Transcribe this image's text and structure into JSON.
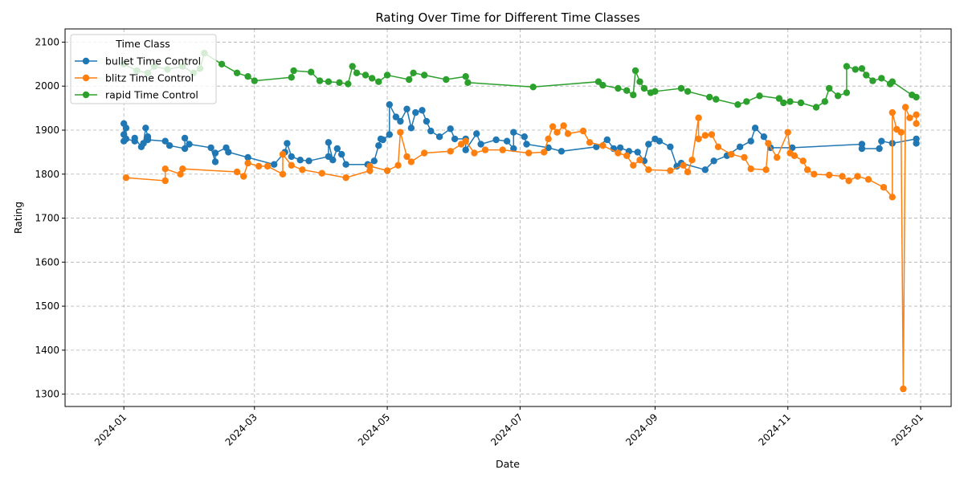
{
  "chart_data": {
    "type": "line",
    "title": "Rating Over Time for Different Time Classes",
    "xlabel": "Date",
    "ylabel": "Rating",
    "x_type": "date",
    "xlim": [
      "2023-12-05",
      "2025-01-15"
    ],
    "ylim": [
      1272,
      2130
    ],
    "x_ticks": [
      "2024-01-01",
      "2024-03-01",
      "2024-05-01",
      "2024-07-01",
      "2024-09-01",
      "2024-11-01",
      "2025-01-01"
    ],
    "x_tick_labels": [
      "2024-01",
      "2024-03",
      "2024-05",
      "2024-07",
      "2024-09",
      "2024-11",
      "2025-01"
    ],
    "y_ticks": [
      1300,
      1400,
      1500,
      1600,
      1700,
      1800,
      1900,
      2000,
      2100
    ],
    "grid": true,
    "legend": {
      "title": "Time Class",
      "placement": "top-left"
    },
    "series": [
      {
        "name": "bullet Time Control",
        "color": "#1f77b4",
        "points": [
          [
            "2024-01-01",
            1875
          ],
          [
            "2024-01-01",
            1915
          ],
          [
            "2024-01-01",
            1890
          ],
          [
            "2024-01-02",
            1905
          ],
          [
            "2024-01-02",
            1880
          ],
          [
            "2024-01-06",
            1875
          ],
          [
            "2024-01-06",
            1882
          ],
          [
            "2024-01-09",
            1862
          ],
          [
            "2024-01-10",
            1870
          ],
          [
            "2024-01-11",
            1905
          ],
          [
            "2024-01-12",
            1885
          ],
          [
            "2024-01-12",
            1878
          ],
          [
            "2024-01-20",
            1875
          ],
          [
            "2024-01-22",
            1865
          ],
          [
            "2024-01-29",
            1858
          ],
          [
            "2024-01-29",
            1882
          ],
          [
            "2024-01-31",
            1868
          ],
          [
            "2024-02-10",
            1860
          ],
          [
            "2024-02-12",
            1828
          ],
          [
            "2024-02-12",
            1848
          ],
          [
            "2024-02-17",
            1860
          ],
          [
            "2024-02-18",
            1850
          ],
          [
            "2024-02-27",
            1838
          ],
          [
            "2024-03-10",
            1822
          ],
          [
            "2024-03-15",
            1850
          ],
          [
            "2024-03-16",
            1870
          ],
          [
            "2024-03-18",
            1840
          ],
          [
            "2024-03-22",
            1832
          ],
          [
            "2024-03-26",
            1830
          ],
          [
            "2024-04-04",
            1840
          ],
          [
            "2024-04-04",
            1872
          ],
          [
            "2024-04-06",
            1832
          ],
          [
            "2024-04-08",
            1858
          ],
          [
            "2024-04-10",
            1845
          ],
          [
            "2024-04-12",
            1822
          ],
          [
            "2024-04-22",
            1822
          ],
          [
            "2024-04-25",
            1830
          ],
          [
            "2024-04-27",
            1865
          ],
          [
            "2024-04-28",
            1880
          ],
          [
            "2024-04-29",
            1878
          ],
          [
            "2024-05-02",
            1890
          ],
          [
            "2024-05-02",
            1958
          ],
          [
            "2024-05-05",
            1930
          ],
          [
            "2024-05-07",
            1920
          ],
          [
            "2024-05-10",
            1948
          ],
          [
            "2024-05-12",
            1905
          ],
          [
            "2024-05-14",
            1940
          ],
          [
            "2024-05-17",
            1945
          ],
          [
            "2024-05-19",
            1920
          ],
          [
            "2024-05-21",
            1898
          ],
          [
            "2024-05-25",
            1885
          ],
          [
            "2024-05-30",
            1903
          ],
          [
            "2024-06-01",
            1880
          ],
          [
            "2024-06-06",
            1880
          ],
          [
            "2024-06-06",
            1855
          ],
          [
            "2024-06-11",
            1892
          ],
          [
            "2024-06-13",
            1868
          ],
          [
            "2024-06-20",
            1878
          ],
          [
            "2024-06-25",
            1875
          ],
          [
            "2024-06-28",
            1858
          ],
          [
            "2024-06-28",
            1895
          ],
          [
            "2024-07-03",
            1885
          ],
          [
            "2024-07-04",
            1868
          ],
          [
            "2024-07-14",
            1860
          ],
          [
            "2024-07-20",
            1852
          ],
          [
            "2024-08-05",
            1862
          ],
          [
            "2024-08-10",
            1878
          ],
          [
            "2024-08-13",
            1858
          ],
          [
            "2024-08-16",
            1860
          ],
          [
            "2024-08-20",
            1852
          ],
          [
            "2024-08-24",
            1850
          ],
          [
            "2024-08-27",
            1830
          ],
          [
            "2024-08-29",
            1868
          ],
          [
            "2024-09-01",
            1880
          ],
          [
            "2024-09-03",
            1875
          ],
          [
            "2024-09-08",
            1862
          ],
          [
            "2024-09-11",
            1818
          ],
          [
            "2024-09-13",
            1825
          ],
          [
            "2024-09-24",
            1810
          ],
          [
            "2024-09-28",
            1830
          ],
          [
            "2024-10-04",
            1842
          ],
          [
            "2024-10-10",
            1862
          ],
          [
            "2024-10-15",
            1875
          ],
          [
            "2024-10-17",
            1905
          ],
          [
            "2024-10-21",
            1885
          ],
          [
            "2024-10-24",
            1860
          ],
          [
            "2024-11-03",
            1860
          ],
          [
            "2024-12-05",
            1868
          ],
          [
            "2024-12-05",
            1858
          ],
          [
            "2024-12-13",
            1858
          ],
          [
            "2024-12-14",
            1875
          ],
          [
            "2024-12-19",
            1870
          ],
          [
            "2024-12-30",
            1880
          ],
          [
            "2024-12-30",
            1870
          ]
        ]
      },
      {
        "name": "blitz Time Control",
        "color": "#ff7f0e",
        "points": [
          [
            "2024-01-02",
            1792
          ],
          [
            "2024-01-20",
            1785
          ],
          [
            "2024-01-20",
            1812
          ],
          [
            "2024-01-27",
            1800
          ],
          [
            "2024-01-28",
            1812
          ],
          [
            "2024-02-22",
            1805
          ],
          [
            "2024-02-25",
            1795
          ],
          [
            "2024-02-27",
            1825
          ],
          [
            "2024-03-03",
            1818
          ],
          [
            "2024-03-07",
            1818
          ],
          [
            "2024-03-14",
            1800
          ],
          [
            "2024-03-14",
            1845
          ],
          [
            "2024-03-18",
            1820
          ],
          [
            "2024-03-23",
            1810
          ],
          [
            "2024-04-01",
            1802
          ],
          [
            "2024-04-12",
            1792
          ],
          [
            "2024-04-23",
            1808
          ],
          [
            "2024-04-23",
            1818
          ],
          [
            "2024-05-01",
            1808
          ],
          [
            "2024-05-06",
            1820
          ],
          [
            "2024-05-07",
            1895
          ],
          [
            "2024-05-10",
            1840
          ],
          [
            "2024-05-12",
            1828
          ],
          [
            "2024-05-18",
            1848
          ],
          [
            "2024-05-30",
            1852
          ],
          [
            "2024-06-04",
            1868
          ],
          [
            "2024-06-06",
            1875
          ],
          [
            "2024-06-10",
            1848
          ],
          [
            "2024-06-15",
            1855
          ],
          [
            "2024-06-23",
            1855
          ],
          [
            "2024-07-05",
            1848
          ],
          [
            "2024-07-12",
            1850
          ],
          [
            "2024-07-14",
            1880
          ],
          [
            "2024-07-16",
            1908
          ],
          [
            "2024-07-18",
            1895
          ],
          [
            "2024-07-21",
            1910
          ],
          [
            "2024-07-23",
            1892
          ],
          [
            "2024-07-30",
            1898
          ],
          [
            "2024-08-02",
            1872
          ],
          [
            "2024-08-08",
            1865
          ],
          [
            "2024-08-15",
            1848
          ],
          [
            "2024-08-19",
            1842
          ],
          [
            "2024-08-22",
            1820
          ],
          [
            "2024-08-25",
            1832
          ],
          [
            "2024-08-29",
            1810
          ],
          [
            "2024-09-08",
            1808
          ],
          [
            "2024-09-14",
            1820
          ],
          [
            "2024-09-16",
            1805
          ],
          [
            "2024-09-18",
            1832
          ],
          [
            "2024-09-21",
            1928
          ],
          [
            "2024-09-21",
            1880
          ],
          [
            "2024-09-24",
            1888
          ],
          [
            "2024-09-27",
            1890
          ],
          [
            "2024-09-30",
            1862
          ],
          [
            "2024-10-06",
            1845
          ],
          [
            "2024-10-12",
            1838
          ],
          [
            "2024-10-15",
            1812
          ],
          [
            "2024-10-22",
            1810
          ],
          [
            "2024-10-23",
            1870
          ],
          [
            "2024-10-27",
            1838
          ],
          [
            "2024-11-01",
            1895
          ],
          [
            "2024-11-02",
            1848
          ],
          [
            "2024-11-04",
            1842
          ],
          [
            "2024-11-08",
            1830
          ],
          [
            "2024-11-10",
            1810
          ],
          [
            "2024-11-13",
            1800
          ],
          [
            "2024-11-20",
            1798
          ],
          [
            "2024-11-26",
            1795
          ],
          [
            "2024-11-29",
            1785
          ],
          [
            "2024-12-03",
            1795
          ],
          [
            "2024-12-08",
            1788
          ],
          [
            "2024-12-15",
            1770
          ],
          [
            "2024-12-19",
            1748
          ],
          [
            "2024-12-19",
            1940
          ],
          [
            "2024-12-21",
            1902
          ],
          [
            "2024-12-23",
            1895
          ],
          [
            "2024-12-24",
            1312
          ],
          [
            "2024-12-25",
            1952
          ],
          [
            "2024-12-27",
            1928
          ],
          [
            "2024-12-30",
            1935
          ],
          [
            "2024-12-30",
            1915
          ]
        ]
      },
      {
        "name": "rapid Time Control",
        "color": "#2ca02c",
        "points": [
          [
            "2024-01-01",
            2050
          ],
          [
            "2024-01-07",
            2035
          ],
          [
            "2024-01-12",
            2030
          ],
          [
            "2024-01-15",
            2045
          ],
          [
            "2024-01-21",
            2038
          ],
          [
            "2024-01-28",
            2045
          ],
          [
            "2024-02-02",
            2030
          ],
          [
            "2024-02-05",
            2040
          ],
          [
            "2024-02-07",
            2075
          ],
          [
            "2024-02-15",
            2050
          ],
          [
            "2024-02-22",
            2030
          ],
          [
            "2024-02-27",
            2022
          ],
          [
            "2024-03-01",
            2012
          ],
          [
            "2024-03-18",
            2020
          ],
          [
            "2024-03-19",
            2035
          ],
          [
            "2024-03-27",
            2032
          ],
          [
            "2024-03-31",
            2012
          ],
          [
            "2024-04-04",
            2010
          ],
          [
            "2024-04-09",
            2008
          ],
          [
            "2024-04-13",
            2005
          ],
          [
            "2024-04-15",
            2045
          ],
          [
            "2024-04-17",
            2030
          ],
          [
            "2024-04-21",
            2025
          ],
          [
            "2024-04-24",
            2018
          ],
          [
            "2024-04-27",
            2010
          ],
          [
            "2024-05-01",
            2025
          ],
          [
            "2024-05-11",
            2015
          ],
          [
            "2024-05-13",
            2030
          ],
          [
            "2024-05-18",
            2025
          ],
          [
            "2024-05-28",
            2015
          ],
          [
            "2024-06-06",
            2022
          ],
          [
            "2024-06-07",
            2008
          ],
          [
            "2024-07-07",
            1998
          ],
          [
            "2024-08-06",
            2010
          ],
          [
            "2024-08-08",
            2002
          ],
          [
            "2024-08-15",
            1995
          ],
          [
            "2024-08-19",
            1990
          ],
          [
            "2024-08-22",
            1980
          ],
          [
            "2024-08-23",
            2035
          ],
          [
            "2024-08-25",
            2010
          ],
          [
            "2024-08-27",
            1995
          ],
          [
            "2024-08-30",
            1985
          ],
          [
            "2024-09-01",
            1988
          ],
          [
            "2024-09-13",
            1995
          ],
          [
            "2024-09-16",
            1988
          ],
          [
            "2024-09-26",
            1975
          ],
          [
            "2024-09-29",
            1970
          ],
          [
            "2024-10-09",
            1958
          ],
          [
            "2024-10-13",
            1965
          ],
          [
            "2024-10-19",
            1978
          ],
          [
            "2024-10-28",
            1972
          ],
          [
            "2024-10-30",
            1962
          ],
          [
            "2024-11-02",
            1965
          ],
          [
            "2024-11-07",
            1962
          ],
          [
            "2024-11-14",
            1952
          ],
          [
            "2024-11-18",
            1965
          ],
          [
            "2024-11-20",
            1995
          ],
          [
            "2024-11-24",
            1978
          ],
          [
            "2024-11-28",
            1985
          ],
          [
            "2024-11-28",
            2045
          ],
          [
            "2024-12-02",
            2038
          ],
          [
            "2024-12-05",
            2040
          ],
          [
            "2024-12-07",
            2025
          ],
          [
            "2024-12-10",
            2012
          ],
          [
            "2024-12-14",
            2018
          ],
          [
            "2024-12-18",
            2005
          ],
          [
            "2024-12-19",
            2010
          ],
          [
            "2024-12-28",
            1980
          ],
          [
            "2024-12-30",
            1975
          ]
        ]
      }
    ]
  }
}
